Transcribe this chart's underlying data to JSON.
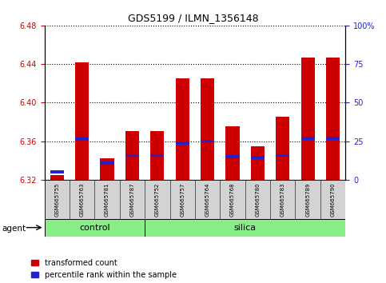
{
  "title": "GDS5199 / ILMN_1356148",
  "samples": [
    "GSM665755",
    "GSM665763",
    "GSM665781",
    "GSM665787",
    "GSM665752",
    "GSM665757",
    "GSM665764",
    "GSM665768",
    "GSM665780",
    "GSM665783",
    "GSM665789",
    "GSM665790"
  ],
  "red_values": [
    6.325,
    6.442,
    6.342,
    6.37,
    6.37,
    6.425,
    6.425,
    6.375,
    6.355,
    6.385,
    6.447,
    6.447
  ],
  "blue_values": [
    6.328,
    6.362,
    6.337,
    6.345,
    6.345,
    6.358,
    6.36,
    6.344,
    6.343,
    6.345,
    6.363,
    6.363
  ],
  "y_min": 6.32,
  "y_max": 6.48,
  "y_ticks": [
    6.32,
    6.36,
    6.4,
    6.44,
    6.48
  ],
  "y2_ticks": [
    0,
    25,
    50,
    75,
    100
  ],
  "y2_labels": [
    "0",
    "25",
    "50",
    "75",
    "100%"
  ],
  "bar_color": "#cc0000",
  "blue_color": "#2222cc",
  "control_color": "#88ee88",
  "silica_color": "#88ee88",
  "legend_labels": [
    "transformed count",
    "percentile rank within the sample"
  ],
  "bar_width": 0.55,
  "blue_bar_height": 0.003,
  "n_control": 4,
  "n_silica": 8,
  "title_fontsize": 9,
  "tick_fontsize": 7,
  "sample_fontsize": 5,
  "group_fontsize": 8,
  "legend_fontsize": 7
}
